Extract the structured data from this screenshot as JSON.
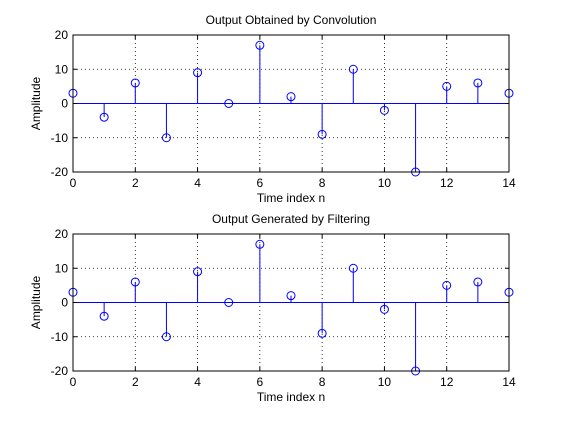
{
  "chart_data": [
    {
      "type": "stem",
      "title": "Output Obtained by Convolution",
      "xlabel": "Time index n",
      "ylabel": "Amplitude",
      "xlim": [
        0,
        14
      ],
      "ylim": [
        -20,
        20
      ],
      "xticks": [
        0,
        2,
        4,
        6,
        8,
        10,
        12,
        14
      ],
      "yticks": [
        -20,
        -10,
        0,
        10,
        20
      ],
      "grid": true,
      "x": [
        0,
        1,
        2,
        3,
        4,
        5,
        6,
        7,
        8,
        9,
        10,
        11,
        12,
        13,
        14
      ],
      "values": [
        3,
        -4,
        6,
        -10,
        9,
        0,
        17,
        2,
        -9,
        10,
        -2,
        -20,
        5,
        6,
        3
      ]
    },
    {
      "type": "stem",
      "title": "Output Generated by Filtering",
      "xlabel": "Time index n",
      "ylabel": "Amplitude",
      "xlim": [
        0,
        14
      ],
      "ylim": [
        -20,
        20
      ],
      "xticks": [
        0,
        2,
        4,
        6,
        8,
        10,
        12,
        14
      ],
      "yticks": [
        -20,
        -10,
        0,
        10,
        20
      ],
      "grid": true,
      "x": [
        0,
        1,
        2,
        3,
        4,
        5,
        6,
        7,
        8,
        9,
        10,
        11,
        12,
        13,
        14
      ],
      "values": [
        3,
        -4,
        6,
        -10,
        9,
        0,
        17,
        2,
        -9,
        10,
        -2,
        -20,
        5,
        6,
        3
      ]
    }
  ],
  "colors": {
    "stem": "#0000ff",
    "axes": "#000000",
    "grid": "#000000",
    "background": "#ffffff"
  }
}
